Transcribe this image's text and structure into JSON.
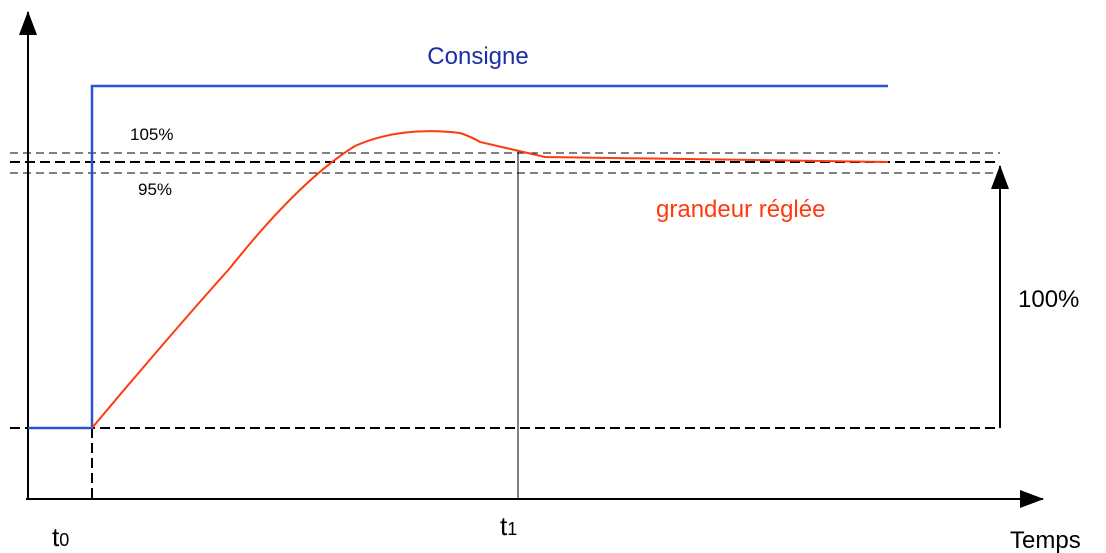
{
  "labels": {
    "setpoint": "Consigne",
    "upper_band": "105%",
    "lower_band": "95%",
    "controlled_variable": "grandeur réglée",
    "full_step": "100%",
    "t0": {
      "base": "t",
      "sub": "0"
    },
    "t1": {
      "base": "t",
      "sub": "1"
    },
    "x_axis": "Temps"
  }
}
